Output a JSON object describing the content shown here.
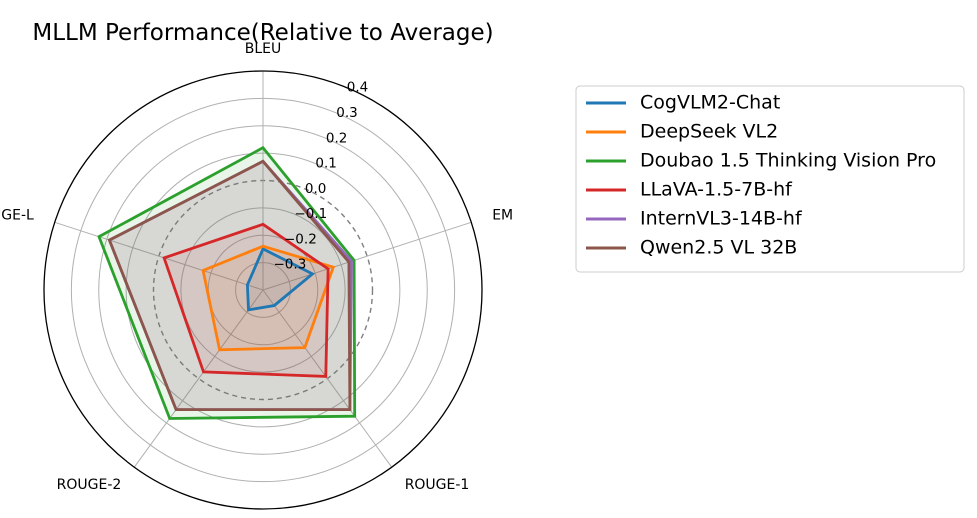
{
  "chart_data": {
    "type": "radar",
    "title": "MLLM Performance(Relative to Average)",
    "axes": [
      "BLEU",
      "EM",
      "ROUGE-1",
      "ROUGE-2",
      "ROUGE-L"
    ],
    "rlim": [
      -0.4,
      0.4
    ],
    "rticks": [
      {
        "value": -0.3,
        "label": "−0.3"
      },
      {
        "value": -0.2,
        "label": "−0.2"
      },
      {
        "value": -0.1,
        "label": "−0.1"
      },
      {
        "value": 0.0,
        "label": "0.0"
      },
      {
        "value": 0.1,
        "label": "0.1"
      },
      {
        "value": 0.2,
        "label": "0.2"
      },
      {
        "value": 0.3,
        "label": "0.3"
      },
      {
        "value": 0.4,
        "label": "0.4"
      }
    ],
    "zero_ring_dashed": true,
    "grid": true,
    "legend_position": "right",
    "series": [
      {
        "name": "CogVLM2-Chat",
        "color": "#1f77b4",
        "values": [
          -0.25,
          -0.21,
          -0.33,
          -0.31,
          -0.34
        ]
      },
      {
        "name": "DeepSeek VL2",
        "color": "#ff7f0e",
        "values": [
          -0.24,
          -0.13,
          -0.14,
          -0.13,
          -0.17
        ]
      },
      {
        "name": "Doubao 1.5 Thinking Vision Pro",
        "color": "#2ca02c",
        "values": [
          0.12,
          -0.05,
          0.17,
          0.18,
          0.23
        ]
      },
      {
        "name": "LLaVA-1.5-7B-hf",
        "color": "#d62728",
        "values": [
          -0.16,
          -0.15,
          -0.01,
          -0.03,
          -0.02
        ]
      },
      {
        "name": "InternVL3-14B-hf",
        "color": "#9467bd",
        "values": [
          0.07,
          -0.06,
          0.14,
          0.14,
          0.19
        ]
      },
      {
        "name": "Qwen2.5 VL 32B",
        "color": "#8c564b",
        "values": [
          0.07,
          -0.07,
          0.14,
          0.14,
          0.19
        ]
      }
    ]
  }
}
